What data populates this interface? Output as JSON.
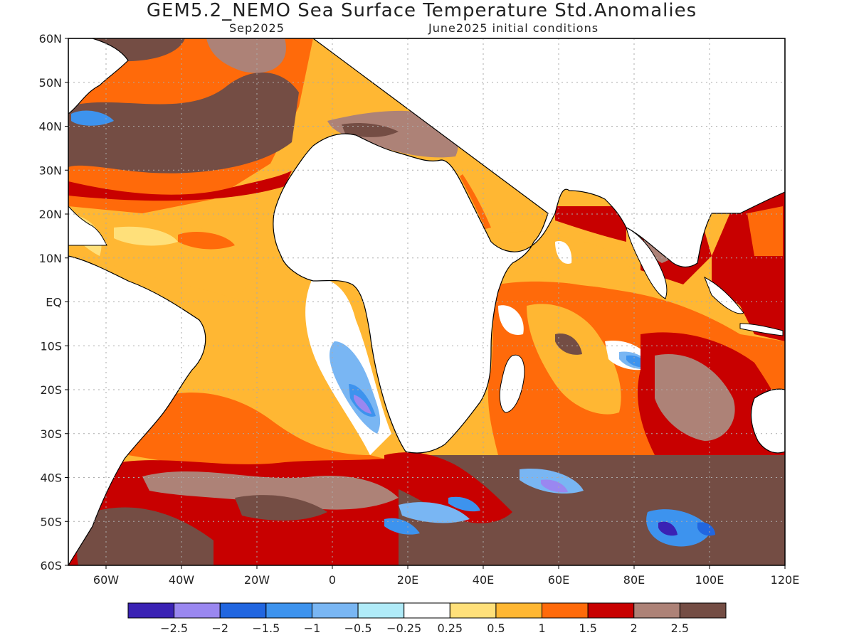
{
  "header": {
    "title": "GEM5.2_NEMO Sea Surface Temperature Std.Anomalies",
    "valid_month": "Sep2025",
    "init_text": "June2025 initial conditions"
  },
  "map": {
    "lon_range": [
      -70,
      120
    ],
    "lat_range": [
      -60,
      60
    ],
    "lat_labels": [
      "60N",
      "50N",
      "40N",
      "30N",
      "20N",
      "10N",
      "EQ",
      "10S",
      "20S",
      "30S",
      "40S",
      "50S",
      "60S"
    ],
    "lat_values": [
      60,
      50,
      40,
      30,
      20,
      10,
      0,
      -10,
      -20,
      -30,
      -40,
      -50,
      -60
    ],
    "lon_labels": [
      "60W",
      "40W",
      "20W",
      "0",
      "20E",
      "40E",
      "60E",
      "80E",
      "100E",
      "120E"
    ],
    "lon_values": [
      -60,
      -40,
      -20,
      0,
      20,
      40,
      60,
      80,
      100,
      120
    ],
    "grid": true
  },
  "colorbar": {
    "colors": [
      "#3a22b4",
      "#9a87f0",
      "#2166e0",
      "#3d93ee",
      "#79b6f3",
      "#b0ebf8",
      "#ffffff",
      "#ffe07a",
      "#ffb733",
      "#ff6a0a",
      "#c80000",
      "#ad8277",
      "#744d44"
    ],
    "labels": [
      "−2.5",
      "−2",
      "−1.5",
      "−1",
      "−0.5",
      "−0.25",
      "0.25",
      "0.5",
      "1",
      "1.5",
      "2",
      "2.5"
    ]
  }
}
